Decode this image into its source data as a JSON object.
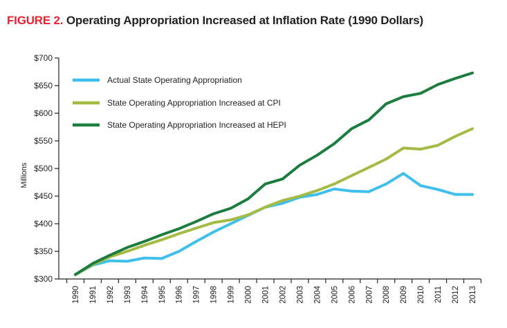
{
  "figure": {
    "label": "FIGURE 2.",
    "title": "Operating Appropriation Increased at Inflation Rate (1990 Dollars)"
  },
  "chart_data": {
    "type": "line",
    "title": "Operating Appropriation Increased at Inflation Rate (1990 Dollars)",
    "xlabel": "",
    "ylabel": "Millions",
    "ylim": [
      300,
      700
    ],
    "y_ticks": [
      300,
      350,
      400,
      450,
      500,
      550,
      600,
      650,
      700
    ],
    "y_tick_labels": [
      "$300",
      "$350",
      "$400",
      "$450",
      "$500",
      "$550",
      "$600",
      "$650",
      "$700"
    ],
    "x": [
      "1990",
      "1991",
      "1992",
      "1993",
      "1994",
      "1995",
      "1996",
      "1997",
      "1998",
      "1999",
      "2000",
      "2001",
      "2002",
      "2003",
      "2004",
      "2005",
      "2006",
      "2007",
      "2008",
      "2009",
      "2010",
      "2011",
      "2012",
      "2013"
    ],
    "legend_position": "top-left",
    "grid": false,
    "series": [
      {
        "name": "Actual State Operating Appropriation",
        "color": "#3fbfeb",
        "values": [
          308,
          325,
          333,
          332,
          338,
          337,
          350,
          368,
          385,
          400,
          415,
          430,
          437,
          448,
          453,
          463,
          459,
          458,
          472,
          491,
          469,
          462,
          453,
          453
        ]
      },
      {
        "name": "State Operating Appropriation Increased at CPI",
        "color": "#a3bb42",
        "values": [
          308,
          326,
          340,
          350,
          361,
          371,
          382,
          392,
          402,
          407,
          416,
          430,
          442,
          450,
          460,
          472,
          487,
          502,
          517,
          537,
          535,
          542,
          558,
          572
        ]
      },
      {
        "name": "State Operating Appropriation Increased at HEPI",
        "color": "#1c7d3f",
        "values": [
          308,
          328,
          343,
          357,
          368,
          380,
          391,
          404,
          418,
          428,
          445,
          472,
          481,
          506,
          524,
          545,
          572,
          588,
          617,
          630,
          636,
          652,
          663,
          673
        ]
      }
    ]
  }
}
